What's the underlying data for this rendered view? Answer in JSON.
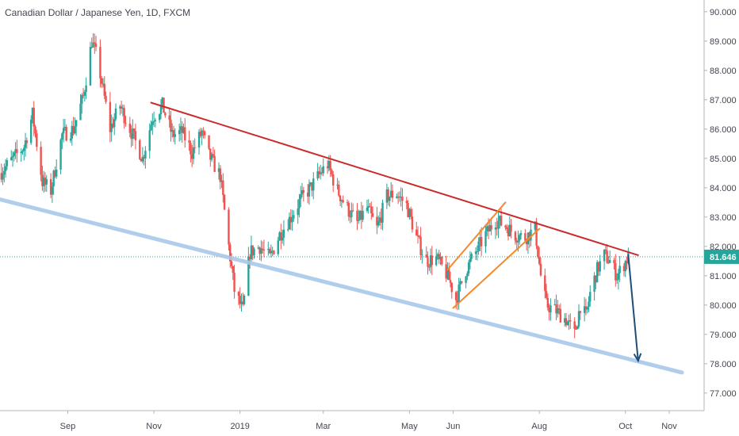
{
  "chart_data": {
    "type": "candlestick",
    "title": "Canadian Dollar / Japanese Yen, 1D, FXCM",
    "symbol": "CADJPY",
    "current_price": "81.646",
    "ylim": [
      76.4,
      90.4
    ],
    "y_ticks": [
      "77.000",
      "78.000",
      "79.000",
      "80.000",
      "81.000",
      "82.000",
      "83.000",
      "84.000",
      "85.000",
      "86.000",
      "87.000",
      "88.000",
      "89.000",
      "90.000"
    ],
    "x_ticks": [
      "Sep",
      "Nov",
      "2019",
      "Mar",
      "May",
      "Jun",
      "Aug",
      "Oct",
      "Nov"
    ],
    "colors": {
      "up": "#26a69a",
      "down": "#ef5350",
      "resistance": "#cc2b2b",
      "support": "#a8c8ea",
      "channel": "#f5892d",
      "arrow": "#1f4e79",
      "price_line": "#26a69a"
    },
    "annotations": [
      {
        "name": "resistance-trendline",
        "from": [
          "2018-10-30",
          86.9
        ],
        "to": [
          "2019-10-10",
          81.7
        ]
      },
      {
        "name": "support-trendline",
        "from": [
          "2018-07-15",
          83.6
        ],
        "to": [
          "2019-11-10",
          77.7
        ]
      },
      {
        "name": "channel-upper",
        "from": [
          "2019-05-28",
          81.2
        ],
        "to": [
          "2019-07-08",
          83.5
        ]
      },
      {
        "name": "channel-lower",
        "from": [
          "2019-06-01",
          79.9
        ],
        "to": [
          "2019-08-01",
          82.6
        ]
      },
      {
        "name": "projection-arrow",
        "from": [
          "2019-10-03",
          81.7
        ],
        "to": [
          "2019-10-10",
          78.1
        ]
      }
    ],
    "ohlc_path": [
      [
        "2018-07-15",
        84.5
      ],
      [
        "2018-08-01",
        85.4
      ],
      [
        "2018-08-07",
        86.5
      ],
      [
        "2018-08-14",
        84.2
      ],
      [
        "2018-08-20",
        83.9
      ],
      [
        "2018-08-28",
        85.8
      ],
      [
        "2018-09-05",
        86.0
      ],
      [
        "2018-09-12",
        87.1
      ],
      [
        "2018-09-18",
        89.0
      ],
      [
        "2018-09-22",
        88.4
      ],
      [
        "2018-10-01",
        86.0
      ],
      [
        "2018-10-08",
        86.8
      ],
      [
        "2018-10-16",
        85.9
      ],
      [
        "2018-10-24",
        85.0
      ],
      [
        "2018-10-31",
        86.4
      ],
      [
        "2018-11-07",
        86.8
      ],
      [
        "2018-11-14",
        85.8
      ],
      [
        "2018-11-21",
        85.9
      ],
      [
        "2018-11-28",
        85.2
      ],
      [
        "2018-12-05",
        85.9
      ],
      [
        "2018-12-10",
        85.1
      ],
      [
        "2018-12-18",
        84.4
      ],
      [
        "2018-12-24",
        82.0
      ],
      [
        "2018-12-28",
        80.5
      ],
      [
        "2019-01-03",
        79.8
      ],
      [
        "2019-01-08",
        81.8
      ],
      [
        "2019-01-15",
        82.0
      ],
      [
        "2019-01-22",
        81.6
      ],
      [
        "2019-01-29",
        82.4
      ],
      [
        "2019-02-06",
        83.0
      ],
      [
        "2019-02-13",
        83.6
      ],
      [
        "2019-02-20",
        84.0
      ],
      [
        "2019-02-27",
        84.5
      ],
      [
        "2019-03-04",
        84.8
      ],
      [
        "2019-03-11",
        83.9
      ],
      [
        "2019-03-18",
        83.3
      ],
      [
        "2019-03-25",
        82.8
      ],
      [
        "2019-04-01",
        83.3
      ],
      [
        "2019-04-08",
        82.6
      ],
      [
        "2019-04-15",
        83.7
      ],
      [
        "2019-04-22",
        83.8
      ],
      [
        "2019-04-29",
        83.4
      ],
      [
        "2019-05-06",
        82.3
      ],
      [
        "2019-05-13",
        81.5
      ],
      [
        "2019-05-20",
        81.6
      ],
      [
        "2019-05-28",
        81.0
      ],
      [
        "2019-06-03",
        80.2
      ],
      [
        "2019-06-10",
        81.2
      ],
      [
        "2019-06-17",
        81.8
      ],
      [
        "2019-06-24",
        82.4
      ],
      [
        "2019-07-01",
        82.9
      ],
      [
        "2019-07-08",
        82.7
      ],
      [
        "2019-07-15",
        82.4
      ],
      [
        "2019-07-22",
        82.3
      ],
      [
        "2019-07-29",
        82.6
      ],
      [
        "2019-08-02",
        81.0
      ],
      [
        "2019-08-06",
        80.0
      ],
      [
        "2019-08-13",
        79.8
      ],
      [
        "2019-08-20",
        79.5
      ],
      [
        "2019-08-26",
        79.0
      ],
      [
        "2019-08-30",
        80.0
      ],
      [
        "2019-09-03",
        79.6
      ],
      [
        "2019-09-06",
        80.4
      ],
      [
        "2019-09-11",
        81.2
      ],
      [
        "2019-09-16",
        81.7
      ],
      [
        "2019-09-20",
        81.5
      ],
      [
        "2019-09-25",
        81.0
      ],
      [
        "2019-09-30",
        81.4
      ],
      [
        "2019-10-03",
        81.65
      ]
    ]
  }
}
